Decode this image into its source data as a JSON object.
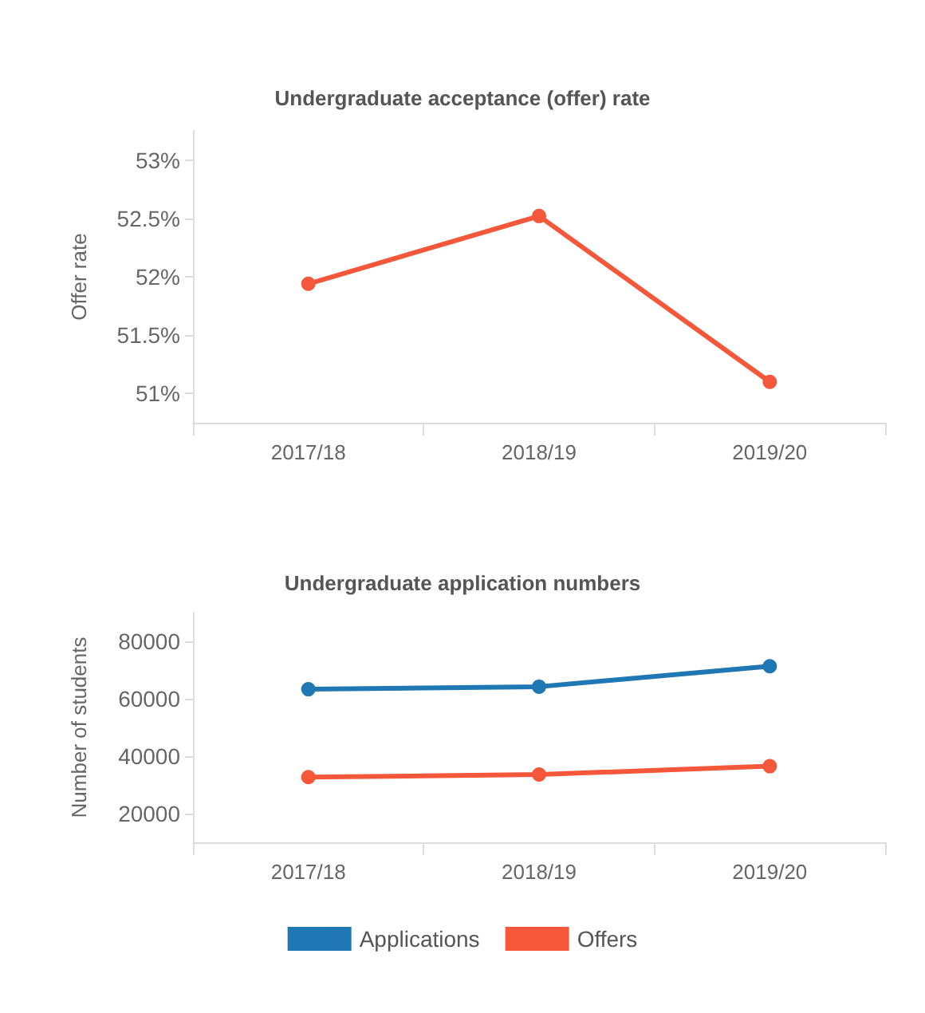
{
  "chart_data": [
    {
      "type": "line",
      "title": "Undergraduate acceptance (offer) rate",
      "ylabel": "Offer rate",
      "categories": [
        "2017/18",
        "2018/19",
        "2019/20"
      ],
      "series": [
        {
          "color": "#f4573a",
          "values": [
            51.94,
            52.52,
            51.1
          ]
        }
      ],
      "ylim": [
        50.75,
        53.25
      ],
      "yticks": [
        {
          "value": 51,
          "label": "51%"
        },
        {
          "value": 51.5,
          "label": "51.5%"
        },
        {
          "value": 52,
          "label": "52%"
        },
        {
          "value": 52.5,
          "label": "52.5%"
        },
        {
          "value": 53,
          "label": "53%"
        }
      ],
      "grid": false,
      "legend": false,
      "marker": "circle",
      "line_style": "solid"
    },
    {
      "type": "line",
      "title": "Undergraduate application numbers",
      "ylabel": "Number of students",
      "categories": [
        "2017/18",
        "2018/19",
        "2019/20"
      ],
      "series": [
        {
          "name": "Applications",
          "color": "#1f77b4",
          "values": [
            63300,
            64200,
            71300
          ]
        },
        {
          "name": "Offers",
          "color": "#f4573a",
          "values": [
            32700,
            33600,
            36500
          ]
        }
      ],
      "ylim": [
        10000,
        90000
      ],
      "yticks": [
        20000,
        40000,
        60000,
        80000
      ],
      "grid": false,
      "legend": "bottom",
      "marker": "circle",
      "line_style": "solid"
    }
  ]
}
